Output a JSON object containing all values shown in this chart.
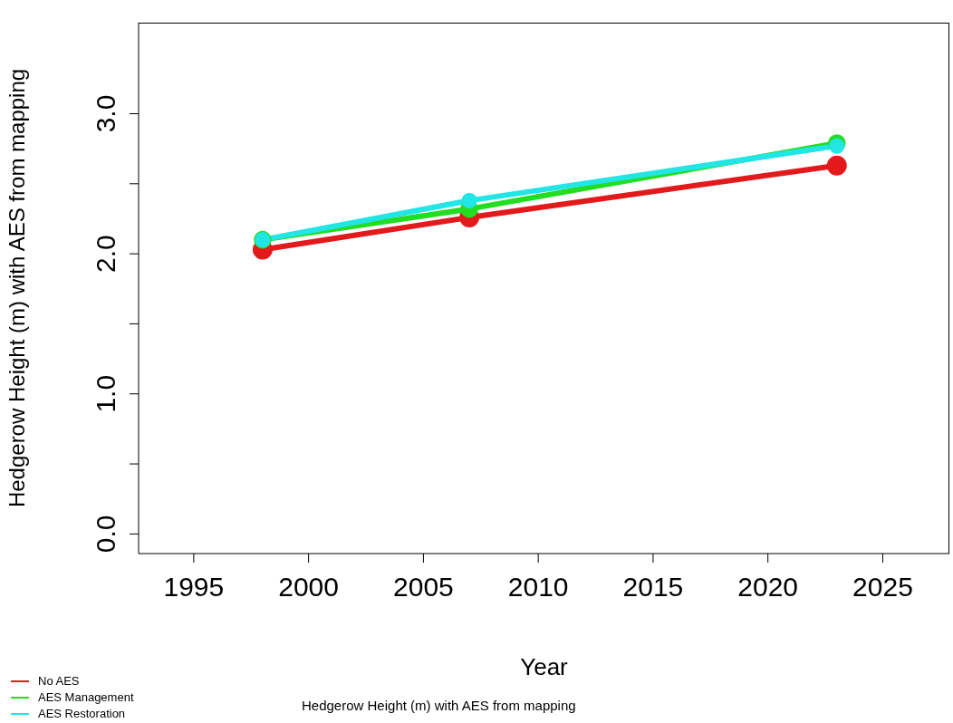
{
  "chart_data": {
    "type": "line",
    "ylabel": "Hedgerow Height (m) with AES from mapping",
    "xlabel": "Year",
    "annotations": [
      "Hedgerow Height (m) with AES from mapping"
    ],
    "x": [
      1998,
      2007,
      2023
    ],
    "series": [
      {
        "name": "No AES",
        "color": "#e31a1c",
        "values": [
          2.03,
          2.26,
          2.63
        ]
      },
      {
        "name": "AES Management",
        "color": "#22dd22",
        "values": [
          2.1,
          2.32,
          2.79
        ]
      },
      {
        "name": "AES Restoration",
        "color": "#22e5e5",
        "values": [
          2.1,
          2.38,
          2.77
        ]
      }
    ],
    "xlim": [
      1992.6,
      2027.9
    ],
    "xticks": [
      1995,
      2000,
      2005,
      2010,
      2015,
      2020,
      2025
    ],
    "ylim": [
      -0.14,
      3.65
    ],
    "yticks": [
      {
        "value": 0,
        "label": "0.0"
      },
      {
        "value": 0.5,
        "label": null
      },
      {
        "value": 1,
        "label": "1.0"
      },
      {
        "value": 1.5,
        "label": null
      },
      {
        "value": 2,
        "label": "2.0"
      },
      {
        "value": 2.5,
        "label": null
      },
      {
        "value": 3,
        "label": "3.0"
      }
    ],
    "marker": "circle",
    "line_style": "solid",
    "grid": false,
    "legend": "bottom left"
  }
}
